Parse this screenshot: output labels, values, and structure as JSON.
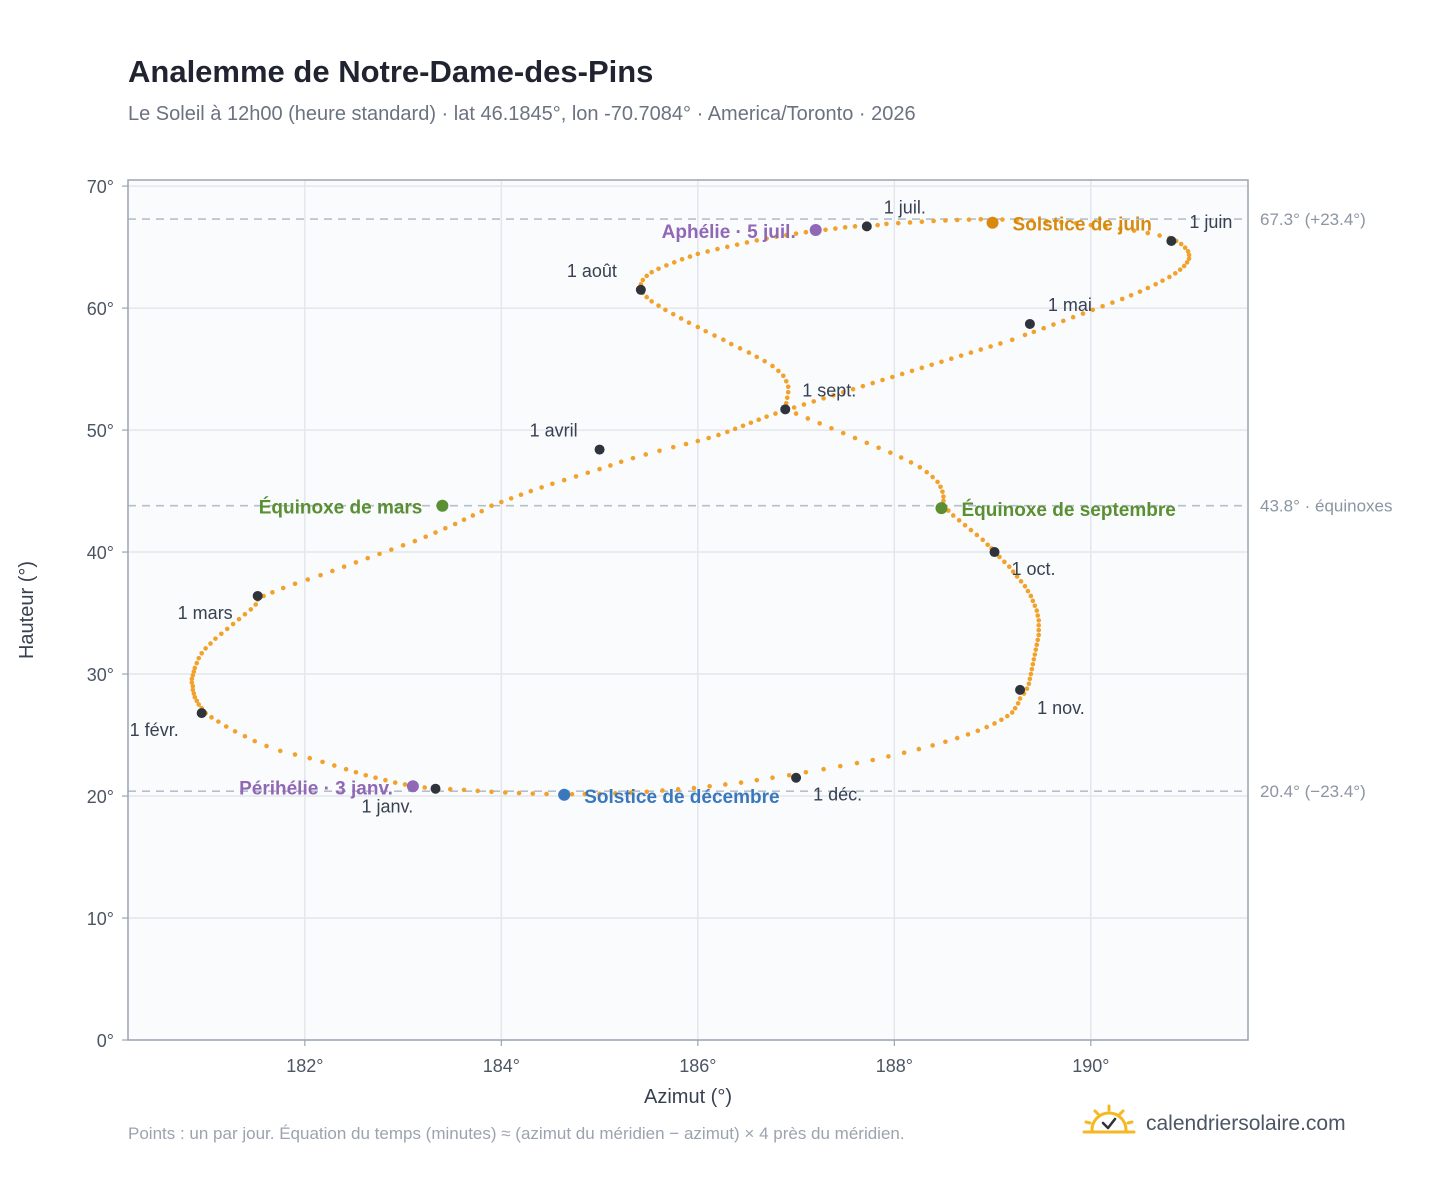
{
  "title": "Analemme de Notre-Dame-des-Pins",
  "subtitle": "Le Soleil à 12h00 (heure standard) · lat 46.1845°, lon -70.7084° · America/Toronto · 2026",
  "footnote": "Points : un par jour. Équation du temps (minutes) ≈ (azimut du méridien − azimut) × 4 près du méridien.",
  "brand": {
    "text": "calendriersolaire.com",
    "icon": "sun-check-icon"
  },
  "colors": {
    "curve": "#f2a22a",
    "month_marker": "#2f343c",
    "equinox": "#5a8f32",
    "june_solstice": "#d88a0e",
    "december_solstice": "#3a78bd",
    "apsis": "#9068b5",
    "reference_line": "#b5bfcc",
    "grid": "#e3e7ed",
    "plot_bg": "#f9fbfd"
  },
  "chart_data": {
    "type": "scatter",
    "title": "Analemme de Notre-Dame-des-Pins",
    "xlabel": "Azimut (°)",
    "ylabel": "Hauteur (°)",
    "xlim": [
      180.2,
      191.6
    ],
    "ylim": [
      0,
      70.5
    ],
    "x_ticks": [
      182,
      184,
      186,
      188,
      190
    ],
    "x_tick_labels": [
      "182°",
      "184°",
      "186°",
      "188°",
      "190°"
    ],
    "y_ticks": [
      0,
      10,
      20,
      30,
      40,
      50,
      60,
      70
    ],
    "y_tick_labels": [
      "0°",
      "10°",
      "20°",
      "30°",
      "40°",
      "50°",
      "60°",
      "70°"
    ],
    "grid": true,
    "reference_lines": [
      {
        "y": 67.3,
        "label": "67.3° (+23.4°)"
      },
      {
        "y": 43.8,
        "label": "43.8° · équinoxes"
      },
      {
        "y": 20.4,
        "label": "20.4° (−23.4°)"
      }
    ],
    "daily_points": [
      [
        183.33,
        20.6
      ],
      [
        183.22,
        20.7
      ],
      [
        183.12,
        20.8
      ],
      [
        183.02,
        20.95
      ],
      [
        182.92,
        21.1
      ],
      [
        182.82,
        21.3
      ],
      [
        182.72,
        21.5
      ],
      [
        182.62,
        21.7
      ],
      [
        182.52,
        21.95
      ],
      [
        182.42,
        22.2
      ],
      [
        182.3,
        22.5
      ],
      [
        182.18,
        22.8
      ],
      [
        182.05,
        23.1
      ],
      [
        181.9,
        23.4
      ],
      [
        181.75,
        23.7
      ],
      [
        181.61,
        24.1
      ],
      [
        181.49,
        24.5
      ],
      [
        181.39,
        24.9
      ],
      [
        181.29,
        25.3
      ],
      [
        181.2,
        25.7
      ],
      [
        181.12,
        26.1
      ],
      [
        181.05,
        26.45
      ],
      [
        180.99,
        26.8
      ],
      [
        180.95,
        27.2
      ],
      [
        180.92,
        27.5
      ],
      [
        180.9,
        27.8
      ],
      [
        180.88,
        28.1
      ],
      [
        180.87,
        28.4
      ],
      [
        180.86,
        28.7
      ],
      [
        180.86,
        29.0
      ],
      [
        180.85,
        29.3
      ],
      [
        180.85,
        29.6
      ],
      [
        180.86,
        29.9
      ],
      [
        180.87,
        30.2
      ],
      [
        180.88,
        30.5
      ],
      [
        180.9,
        30.9
      ],
      [
        180.92,
        31.3
      ],
      [
        180.95,
        31.7
      ],
      [
        180.99,
        32.1
      ],
      [
        181.04,
        32.5
      ],
      [
        181.09,
        32.9
      ],
      [
        181.15,
        33.3
      ],
      [
        181.21,
        33.7
      ],
      [
        181.27,
        34.1
      ],
      [
        181.33,
        34.5
      ],
      [
        181.39,
        34.9
      ],
      [
        181.45,
        35.3
      ],
      [
        181.5,
        35.7
      ],
      [
        181.52,
        36.1
      ],
      [
        181.58,
        36.4
      ],
      [
        181.67,
        36.7
      ],
      [
        181.78,
        37.05
      ],
      [
        181.9,
        37.4
      ],
      [
        182.03,
        37.75
      ],
      [
        182.16,
        38.1
      ],
      [
        182.28,
        38.45
      ],
      [
        182.4,
        38.8
      ],
      [
        182.52,
        39.15
      ],
      [
        182.64,
        39.5
      ],
      [
        182.76,
        39.85
      ],
      [
        182.88,
        40.2
      ],
      [
        183.0,
        40.55
      ],
      [
        183.12,
        40.9
      ],
      [
        183.23,
        41.25
      ],
      [
        183.33,
        41.6
      ],
      [
        183.43,
        41.95
      ],
      [
        183.53,
        42.3
      ],
      [
        183.62,
        42.65
      ],
      [
        183.71,
        43.0
      ],
      [
        183.8,
        43.35
      ],
      [
        183.9,
        43.8
      ],
      [
        184.0,
        44.1
      ],
      [
        184.1,
        44.4
      ],
      [
        184.2,
        44.7
      ],
      [
        184.3,
        45.0
      ],
      [
        184.41,
        45.3
      ],
      [
        184.52,
        45.6
      ],
      [
        184.64,
        45.9
      ],
      [
        184.76,
        46.2
      ],
      [
        184.88,
        46.5
      ],
      [
        185.0,
        46.8
      ],
      [
        185.11,
        47.1
      ],
      [
        185.22,
        47.4
      ],
      [
        185.34,
        47.7
      ],
      [
        185.47,
        48.0
      ],
      [
        185.61,
        48.3
      ],
      [
        185.75,
        48.6
      ],
      [
        185.88,
        48.85
      ],
      [
        186.0,
        49.1
      ],
      [
        186.11,
        49.35
      ],
      [
        186.21,
        49.6
      ],
      [
        186.3,
        49.85
      ],
      [
        186.38,
        50.1
      ],
      [
        186.46,
        50.35
      ],
      [
        186.54,
        50.6
      ],
      [
        186.62,
        50.85
      ],
      [
        186.7,
        51.1
      ],
      [
        186.79,
        51.35
      ],
      [
        186.88,
        51.6
      ],
      [
        186.98,
        51.85
      ],
      [
        187.08,
        52.1
      ],
      [
        187.18,
        52.35
      ],
      [
        187.28,
        52.6
      ],
      [
        187.38,
        52.85
      ],
      [
        187.48,
        53.1
      ],
      [
        187.58,
        53.35
      ],
      [
        187.68,
        53.6
      ],
      [
        187.78,
        53.85
      ],
      [
        187.88,
        54.1
      ],
      [
        187.98,
        54.35
      ],
      [
        188.08,
        54.6
      ],
      [
        188.18,
        54.85
      ],
      [
        188.28,
        55.1
      ],
      [
        188.38,
        55.35
      ],
      [
        188.48,
        55.6
      ],
      [
        188.58,
        55.85
      ],
      [
        188.68,
        56.1
      ],
      [
        188.78,
        56.35
      ],
      [
        188.88,
        56.6
      ],
      [
        188.98,
        56.85
      ],
      [
        189.08,
        57.1
      ],
      [
        189.2,
        57.4
      ],
      [
        189.33,
        57.8
      ],
      [
        189.42,
        58.05
      ],
      [
        189.52,
        58.35
      ],
      [
        189.62,
        58.65
      ],
      [
        189.72,
        58.95
      ],
      [
        189.82,
        59.25
      ],
      [
        189.92,
        59.55
      ],
      [
        190.02,
        59.85
      ],
      [
        190.12,
        60.15
      ],
      [
        190.22,
        60.45
      ],
      [
        190.32,
        60.75
      ],
      [
        190.41,
        61.05
      ],
      [
        190.5,
        61.35
      ],
      [
        190.58,
        61.65
      ],
      [
        190.66,
        61.95
      ],
      [
        190.73,
        62.25
      ],
      [
        190.8,
        62.55
      ],
      [
        190.86,
        62.85
      ],
      [
        190.91,
        63.15
      ],
      [
        190.95,
        63.45
      ],
      [
        190.98,
        63.75
      ],
      [
        191.0,
        64.05
      ],
      [
        191.0,
        64.35
      ],
      [
        190.99,
        64.65
      ],
      [
        190.96,
        64.95
      ],
      [
        190.92,
        65.25
      ],
      [
        190.87,
        65.5
      ],
      [
        190.8,
        65.75
      ],
      [
        190.7,
        65.95
      ],
      [
        190.58,
        66.15
      ],
      [
        190.44,
        66.35
      ],
      [
        190.3,
        66.5
      ],
      [
        190.15,
        66.65
      ],
      [
        190.0,
        66.8
      ],
      [
        189.85,
        66.95
      ],
      [
        189.7,
        67.05
      ],
      [
        189.55,
        67.12
      ],
      [
        189.4,
        67.18
      ],
      [
        189.25,
        67.22
      ],
      [
        189.1,
        67.26
      ],
      [
        189.0,
        67.3
      ],
      [
        188.88,
        67.28
      ],
      [
        188.76,
        67.25
      ],
      [
        188.64,
        67.22
      ],
      [
        188.52,
        67.18
      ],
      [
        188.4,
        67.14
      ],
      [
        188.28,
        67.08
      ],
      [
        188.16,
        67.02
      ],
      [
        188.04,
        66.96
      ],
      [
        187.92,
        66.9
      ],
      [
        187.83,
        66.8
      ],
      [
        187.71,
        66.75
      ],
      [
        187.6,
        66.7
      ],
      [
        187.5,
        66.62
      ],
      [
        187.4,
        66.52
      ],
      [
        187.3,
        66.42
      ],
      [
        187.2,
        66.32
      ],
      [
        187.1,
        66.22
      ],
      [
        187.0,
        66.1
      ],
      [
        186.9,
        65.98
      ],
      [
        186.8,
        65.85
      ],
      [
        186.7,
        65.7
      ],
      [
        186.6,
        65.55
      ],
      [
        186.5,
        65.38
      ],
      [
        186.4,
        65.2
      ],
      [
        186.3,
        65.02
      ],
      [
        186.2,
        64.84
      ],
      [
        186.1,
        64.64
      ],
      [
        186.0,
        64.44
      ],
      [
        185.92,
        64.22
      ],
      [
        185.84,
        64.0
      ],
      [
        185.76,
        63.75
      ],
      [
        185.68,
        63.5
      ],
      [
        185.6,
        63.22
      ],
      [
        185.53,
        62.94
      ],
      [
        185.48,
        62.64
      ],
      [
        185.44,
        62.3
      ],
      [
        185.42,
        61.95
      ],
      [
        185.42,
        61.6
      ],
      [
        185.44,
        61.25
      ],
      [
        185.48,
        60.9
      ],
      [
        185.53,
        60.55
      ],
      [
        185.6,
        60.2
      ],
      [
        185.67,
        59.85
      ],
      [
        185.75,
        59.5
      ],
      [
        185.83,
        59.15
      ],
      [
        185.91,
        58.8
      ],
      [
        186.0,
        58.45
      ],
      [
        186.08,
        58.1
      ],
      [
        186.17,
        57.75
      ],
      [
        186.26,
        57.4
      ],
      [
        186.34,
        57.05
      ],
      [
        186.43,
        56.7
      ],
      [
        186.52,
        56.35
      ],
      [
        186.6,
        56.0
      ],
      [
        186.68,
        55.65
      ],
      [
        186.76,
        55.25
      ],
      [
        186.82,
        54.85
      ],
      [
        186.87,
        54.45
      ],
      [
        186.9,
        54.0
      ],
      [
        186.92,
        53.55
      ],
      [
        186.92,
        53.1
      ],
      [
        186.91,
        52.65
      ],
      [
        186.9,
        52.2
      ],
      [
        186.89,
        51.75
      ],
      [
        187.0,
        51.35
      ],
      [
        187.12,
        50.95
      ],
      [
        187.24,
        50.55
      ],
      [
        187.36,
        50.15
      ],
      [
        187.48,
        49.75
      ],
      [
        187.6,
        49.35
      ],
      [
        187.72,
        48.95
      ],
      [
        187.84,
        48.55
      ],
      [
        187.96,
        48.15
      ],
      [
        188.07,
        47.75
      ],
      [
        188.17,
        47.35
      ],
      [
        188.26,
        46.95
      ],
      [
        188.33,
        46.55
      ],
      [
        188.39,
        46.15
      ],
      [
        188.44,
        45.75
      ],
      [
        188.47,
        45.35
      ],
      [
        188.49,
        44.95
      ],
      [
        188.5,
        44.55
      ],
      [
        188.5,
        44.2
      ],
      [
        188.5,
        43.8
      ],
      [
        188.55,
        43.4
      ],
      [
        188.6,
        43.0
      ],
      [
        188.66,
        42.6
      ],
      [
        188.72,
        42.2
      ],
      [
        188.78,
        41.8
      ],
      [
        188.84,
        41.4
      ],
      [
        188.9,
        41.0
      ],
      [
        188.95,
        40.6
      ],
      [
        188.99,
        40.3
      ],
      [
        189.02,
        40.0
      ],
      [
        189.07,
        39.6
      ],
      [
        189.12,
        39.2
      ],
      [
        189.17,
        38.8
      ],
      [
        189.21,
        38.4
      ],
      [
        189.25,
        38.0
      ],
      [
        189.29,
        37.6
      ],
      [
        189.33,
        37.2
      ],
      [
        189.36,
        36.8
      ],
      [
        189.39,
        36.4
      ],
      [
        189.41,
        36.0
      ],
      [
        189.43,
        35.6
      ],
      [
        189.45,
        35.2
      ],
      [
        189.46,
        34.8
      ],
      [
        189.47,
        34.4
      ],
      [
        189.47,
        34.0
      ],
      [
        189.47,
        33.6
      ],
      [
        189.47,
        33.2
      ],
      [
        189.46,
        32.8
      ],
      [
        189.45,
        32.4
      ],
      [
        189.44,
        32.0
      ],
      [
        189.43,
        31.6
      ],
      [
        189.42,
        31.2
      ],
      [
        189.41,
        30.8
      ],
      [
        189.4,
        30.4
      ],
      [
        189.39,
        30.0
      ],
      [
        189.38,
        29.6
      ],
      [
        189.37,
        29.2
      ],
      [
        189.35,
        28.8
      ],
      [
        189.32,
        28.4
      ],
      [
        189.28,
        28.0
      ],
      [
        189.26,
        27.6
      ],
      [
        189.23,
        27.2
      ],
      [
        189.2,
        26.85
      ],
      [
        189.15,
        26.55
      ],
      [
        189.09,
        26.25
      ],
      [
        189.02,
        25.95
      ],
      [
        188.94,
        25.65
      ],
      [
        188.85,
        25.35
      ],
      [
        188.75,
        25.05
      ],
      [
        188.64,
        24.75
      ],
      [
        188.52,
        24.45
      ],
      [
        188.39,
        24.15
      ],
      [
        188.25,
        23.85
      ],
      [
        188.1,
        23.55
      ],
      [
        187.94,
        23.25
      ],
      [
        187.78,
        22.95
      ],
      [
        187.62,
        22.7
      ],
      [
        187.45,
        22.45
      ],
      [
        187.28,
        22.2
      ],
      [
        187.1,
        21.95
      ],
      [
        186.93,
        21.7
      ],
      [
        186.76,
        21.5
      ],
      [
        186.6,
        21.3
      ],
      [
        186.44,
        21.1
      ],
      [
        186.28,
        20.95
      ],
      [
        186.12,
        20.8
      ],
      [
        185.96,
        20.65
      ],
      [
        185.8,
        20.55
      ],
      [
        185.64,
        20.45
      ],
      [
        185.48,
        20.35
      ],
      [
        185.32,
        20.28
      ],
      [
        185.16,
        20.22
      ],
      [
        185.0,
        20.18
      ],
      [
        184.85,
        20.16
      ],
      [
        184.72,
        20.15
      ],
      [
        184.6,
        20.15
      ],
      [
        184.46,
        20.17
      ],
      [
        184.32,
        20.2
      ],
      [
        184.18,
        20.24
      ],
      [
        184.04,
        20.29
      ],
      [
        183.9,
        20.35
      ],
      [
        183.76,
        20.42
      ],
      [
        183.62,
        20.5
      ],
      [
        183.48,
        20.56
      ]
    ],
    "month_markers": [
      {
        "label": "1 janv.",
        "azimuth": 183.33,
        "altitude": 20.6
      },
      {
        "label": "1 févr.",
        "azimuth": 180.95,
        "altitude": 26.8
      },
      {
        "label": "1 mars",
        "azimuth": 181.52,
        "altitude": 36.4
      },
      {
        "label": "1 avril",
        "azimuth": 185.0,
        "altitude": 48.4
      },
      {
        "label": "1 mai",
        "azimuth": 189.38,
        "altitude": 58.7
      },
      {
        "label": "1 juin",
        "azimuth": 190.82,
        "altitude": 65.5
      },
      {
        "label": "1 juil.",
        "azimuth": 187.72,
        "altitude": 66.7
      },
      {
        "label": "1 août",
        "azimuth": 185.42,
        "altitude": 61.5
      },
      {
        "label": "1 sept.",
        "azimuth": 186.89,
        "altitude": 51.7
      },
      {
        "label": "1 oct.",
        "azimuth": 189.02,
        "altitude": 40.0
      },
      {
        "label": "1 nov.",
        "azimuth": 189.28,
        "altitude": 28.7
      },
      {
        "label": "1 déc.",
        "azimuth": 187.0,
        "altitude": 21.5
      }
    ],
    "events": [
      {
        "label": "Équinoxe de mars",
        "azimuth": 183.4,
        "altitude": 43.8,
        "kind": "equinox"
      },
      {
        "label": "Équinoxe de septembre",
        "azimuth": 188.48,
        "altitude": 43.6,
        "kind": "equinox"
      },
      {
        "label": "Solstice de juin",
        "azimuth": 189.0,
        "altitude": 67.0,
        "kind": "june_solstice"
      },
      {
        "label": "Solstice de décembre",
        "azimuth": 184.64,
        "altitude": 20.1,
        "kind": "december_solstice"
      },
      {
        "label": "Aphélie · 5 juil.",
        "azimuth": 187.2,
        "altitude": 66.4,
        "kind": "apsis"
      },
      {
        "label": "Périhélie · 3 janv.",
        "azimuth": 183.1,
        "altitude": 20.8,
        "kind": "apsis"
      }
    ]
  }
}
